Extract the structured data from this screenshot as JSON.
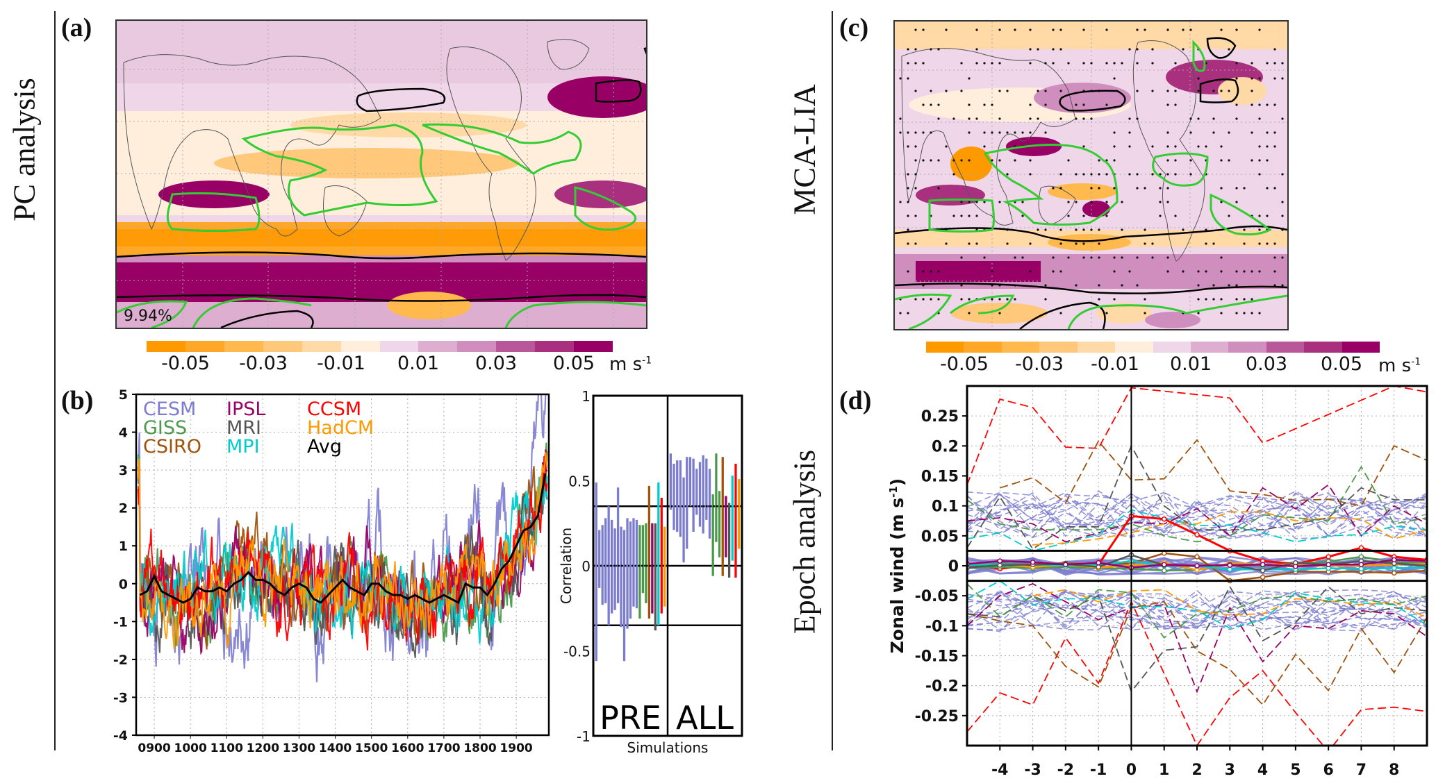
{
  "row_labels": {
    "left": "PC analysis",
    "right_top": "MCA-LIA",
    "right_bottom": "Epoch analysis"
  },
  "panel_labels": {
    "a": "(a)",
    "b": "(b)",
    "c": "(c)",
    "d": "(d)"
  },
  "colors": {
    "neg_strong": "#ff9900",
    "pos_strong": "#990066",
    "contour_green": "#33cc33",
    "contour_black": "#000000",
    "CESM": "#7b7bcf",
    "IPSL": "#990066",
    "CCSM": "#ff0000",
    "GISS": "#4a9a4a",
    "MRI": "#555555",
    "HadCM": "#ff9900",
    "CSIRO": "#a0520a",
    "MPI": "#00cccc",
    "Avg": "#000000"
  },
  "colorbar": {
    "colors": [
      "#ff9900",
      "#ffa726",
      "#ffb94d",
      "#ffc87a",
      "#ffd9a6",
      "#feeedb",
      "#efd6e8",
      "#deaed0",
      "#cf8ebe",
      "#b8589b",
      "#a8307f",
      "#990066"
    ],
    "tick_labels": [
      "-0.05",
      "-0.03",
      "-0.01",
      "0.01",
      "0.03",
      "0.05"
    ],
    "unit": "m s",
    "unit_exp": "-1"
  },
  "panel_a": {
    "variance_label": "9.94%"
  },
  "chart_data": [
    {
      "panel": "b",
      "type": "line",
      "title": "",
      "xlabel": "",
      "ylabel": "",
      "xlim": [
        850,
        1990
      ],
      "ylim": [
        -4,
        5
      ],
      "x_tick_labels": [
        "0900",
        "1000",
        "1100",
        "1200",
        "1300",
        "1400",
        "1500",
        "1600",
        "1700",
        "1800",
        "1900"
      ],
      "x_ticks": [
        900,
        1000,
        1100,
        1200,
        1300,
        1400,
        1500,
        1600,
        1700,
        1800,
        1900
      ],
      "y_tick_labels": [
        "-4",
        "-3",
        "-2",
        "-1",
        "0",
        "1",
        "2",
        "3",
        "4",
        "5"
      ],
      "y_ticks": [
        -4,
        -3,
        -2,
        -1,
        0,
        1,
        2,
        3,
        4,
        5
      ],
      "grid": true,
      "legend_position": "top-left",
      "legend": [
        {
          "name": "CESM"
        },
        {
          "name": "IPSL"
        },
        {
          "name": "CCSM"
        },
        {
          "name": "GISS"
        },
        {
          "name": "MRI"
        },
        {
          "name": "HadCM"
        },
        {
          "name": "CSIRO"
        },
        {
          "name": "MPI"
        },
        {
          "name": "Avg"
        }
      ],
      "avg_series": {
        "name": "Avg",
        "x": [
          860,
          880,
          900,
          920,
          940,
          960,
          980,
          1000,
          1020,
          1040,
          1060,
          1080,
          1100,
          1120,
          1140,
          1160,
          1180,
          1200,
          1220,
          1240,
          1260,
          1280,
          1300,
          1320,
          1340,
          1360,
          1380,
          1400,
          1420,
          1440,
          1460,
          1480,
          1500,
          1520,
          1540,
          1560,
          1580,
          1600,
          1620,
          1640,
          1660,
          1680,
          1700,
          1720,
          1740,
          1760,
          1780,
          1800,
          1820,
          1840,
          1860,
          1880,
          1900,
          1920,
          1940,
          1960,
          1980
        ],
        "y": [
          -0.3,
          -0.2,
          0.2,
          -0.2,
          -0.3,
          -0.4,
          -0.5,
          -0.4,
          -0.1,
          -0.2,
          -0.2,
          -0.1,
          -0.2,
          0.0,
          0.1,
          0.3,
          0.1,
          0.1,
          0.0,
          -0.2,
          -0.3,
          -0.1,
          0.0,
          -0.1,
          -0.4,
          -0.5,
          -0.3,
          -0.1,
          0.1,
          -0.1,
          -0.2,
          -0.3,
          0.0,
          0.0,
          -0.2,
          -0.3,
          -0.3,
          -0.4,
          -0.3,
          -0.4,
          -0.5,
          -0.4,
          -0.3,
          -0.4,
          -0.5,
          0.0,
          -0.1,
          -0.1,
          -0.3,
          0.0,
          0.4,
          0.6,
          1.0,
          1.4,
          1.5,
          1.8,
          2.9
        ]
      },
      "model_series_spread": {
        "description": "individual model time series fluctuate roughly between -3.2 and 2.6, with CESM rising to ~5 after 1900",
        "CESM_range": [
          -3.2,
          5.0
        ],
        "others_range": [
          -2.6,
          2.6
        ]
      }
    },
    {
      "panel": "b-correlation",
      "type": "bar",
      "title": "",
      "xlabel": "Simulations",
      "ylabel": "Correlation",
      "ylim": [
        -1,
        1
      ],
      "y_tick_labels": [
        "-1",
        "-0.5",
        "0",
        "0.5",
        "1"
      ],
      "y_ticks": [
        -1,
        -0.5,
        0,
        0.5,
        1
      ],
      "significance_lines": [
        0.35,
        -0.35
      ],
      "groups": [
        {
          "name": "PRE",
          "bars": [
            {
              "model": "CESM",
              "low": -0.56,
              "high": 0.49
            },
            {
              "model": "CESM",
              "low": -0.13,
              "high": 0.21
            },
            {
              "model": "CESM",
              "low": -0.23,
              "high": 0.24
            },
            {
              "model": "CESM",
              "low": -0.22,
              "high": 0.28
            },
            {
              "model": "CESM",
              "low": -0.35,
              "high": 0.35
            },
            {
              "model": "CESM",
              "low": -0.28,
              "high": 0.27
            },
            {
              "model": "CESM",
              "low": -0.26,
              "high": 0.22
            },
            {
              "model": "CESM",
              "low": -0.22,
              "high": 0.46
            },
            {
              "model": "CESM",
              "low": -0.36,
              "high": 0.23
            },
            {
              "model": "CESM",
              "low": -0.56,
              "high": 0.21
            },
            {
              "model": "CESM",
              "low": -0.37,
              "high": 0.28
            },
            {
              "model": "CESM",
              "low": -0.31,
              "high": 0.26
            },
            {
              "model": "CESM",
              "low": -0.24,
              "high": 0.28
            },
            {
              "model": "CESM",
              "low": -0.25,
              "high": 0.27
            },
            {
              "model": "GISS",
              "low": -0.31,
              "high": 0.24
            },
            {
              "model": "GISS",
              "low": -0.16,
              "high": 0.24
            },
            {
              "model": "GISS",
              "low": -0.22,
              "high": 0.25
            },
            {
              "model": "CSIRO",
              "low": -0.31,
              "high": 0.47
            },
            {
              "model": "IPSL",
              "low": -0.28,
              "high": 0.25
            },
            {
              "model": "MRI",
              "low": -0.38,
              "high": 0.25
            },
            {
              "model": "MPI",
              "low": -0.35,
              "high": 0.49
            },
            {
              "model": "CCSM",
              "low": -0.28,
              "high": 0.4
            },
            {
              "model": "HadCM",
              "low": -0.24,
              "high": 0.23
            }
          ]
        },
        {
          "name": "ALL",
          "bars": [
            {
              "model": "CESM",
              "low": 0.33,
              "high": 0.66
            },
            {
              "model": "CESM",
              "low": 0.21,
              "high": 0.6
            },
            {
              "model": "CESM",
              "low": 0.2,
              "high": 0.62
            },
            {
              "model": "CESM",
              "low": 0.17,
              "high": 0.62
            },
            {
              "model": "CESM",
              "low": 0.02,
              "high": 0.52
            },
            {
              "model": "CESM",
              "low": 0.1,
              "high": 0.64
            },
            {
              "model": "CESM",
              "low": 0.35,
              "high": 0.64
            },
            {
              "model": "CESM",
              "low": 0.2,
              "high": 0.63
            },
            {
              "model": "CESM",
              "low": 0.3,
              "high": 0.57
            },
            {
              "model": "CESM",
              "low": 0.23,
              "high": 0.61
            },
            {
              "model": "CESM",
              "low": 0.19,
              "high": 0.65
            },
            {
              "model": "CESM",
              "low": 0.27,
              "high": 0.63
            },
            {
              "model": "CESM",
              "low": 0.16,
              "high": 0.57
            },
            {
              "model": "GISS",
              "low": -0.06,
              "high": 0.42
            },
            {
              "model": "GISS",
              "low": 0.14,
              "high": 0.66
            },
            {
              "model": "GISS",
              "low": 0.05,
              "high": 0.44
            },
            {
              "model": "CSIRO",
              "low": -0.06,
              "high": 0.64
            },
            {
              "model": "IPSL",
              "low": 0.05,
              "high": 0.41
            },
            {
              "model": "MRI",
              "low": -0.07,
              "high": 0.37
            },
            {
              "model": "MPI",
              "low": 0.03,
              "high": 0.53
            },
            {
              "model": "CCSM",
              "low": -0.07,
              "high": 0.6
            },
            {
              "model": "HadCM",
              "low": 0.1,
              "high": 0.51
            }
          ]
        }
      ],
      "group_labels": [
        "PRE",
        "ALL"
      ]
    },
    {
      "panel": "d",
      "type": "line",
      "title": "",
      "xlabel": "",
      "ylabel": "Zonal wind (m s-1)",
      "ylabel_main": "Zonal wind (m s",
      "ylabel_exp": "-1",
      "ylabel_close": ")",
      "xlim": [
        -5,
        9
      ],
      "ylim": [
        -0.3,
        0.3
      ],
      "x_tick_labels": [
        "-4",
        "-3",
        "-2",
        "-1",
        "0",
        "1",
        "2",
        "3",
        "4",
        "5",
        "6",
        "7",
        "8"
      ],
      "x_ticks": [
        -4,
        -3,
        -2,
        -1,
        0,
        1,
        2,
        3,
        4,
        5,
        6,
        7,
        8
      ],
      "y_tick_labels": [
        "-0.25",
        "-0.2",
        "-0.15",
        "-0.1",
        "-0.05",
        "0",
        "0.05",
        "0.1",
        "0.15",
        "0.2",
        "0.25"
      ],
      "y_ticks": [
        -0.25,
        -0.2,
        -0.15,
        -0.1,
        -0.05,
        0,
        0.05,
        0.1,
        0.15,
        0.2,
        0.25
      ],
      "grid": true,
      "threshold_lines": [
        0.025,
        -0.025
      ],
      "event_line_x": 0,
      "x": [
        -5,
        -4,
        -3,
        -2,
        -1,
        0,
        1,
        2,
        3,
        4,
        5,
        6,
        7,
        8,
        9
      ],
      "solid_series": [
        {
          "model": "CCSM",
          "y": [
            0.003,
            -0.005,
            0.002,
            0.001,
            0.002,
            0.083,
            0.078,
            0.052,
            0.025,
            0.008,
            0.003,
            0.015,
            0.03,
            0.015,
            0.01
          ]
        },
        {
          "model": "CSIRO",
          "y": [
            0.0,
            0.004,
            0.002,
            0.004,
            0.003,
            0.004,
            0.021,
            0.015,
            -0.025,
            -0.019,
            -0.01,
            -0.01,
            -0.01,
            -0.012,
            -0.008
          ]
        },
        {
          "model": "GISS",
          "y": [
            -0.004,
            -0.002,
            -0.004,
            -0.002,
            -0.004,
            -0.005,
            -0.008,
            -0.007,
            0.003,
            0.0,
            0.004,
            0.007,
            0.015,
            0.006,
            0.004
          ]
        },
        {
          "model": "HadCM",
          "y": [
            0.002,
            0.002,
            -0.002,
            0.002,
            -0.003,
            0.001,
            0.005,
            -0.007,
            0.004,
            0.002,
            0.001,
            0.0,
            0.0,
            0.002,
            0.003
          ]
        },
        {
          "model": "MPI",
          "y": [
            0.001,
            0.003,
            0.002,
            0.001,
            0.001,
            0.008,
            0.0,
            0.0,
            -0.006,
            -0.006,
            -0.006,
            -0.004,
            -0.005,
            -0.004,
            -0.003
          ]
        },
        {
          "model": "MRI",
          "y": [
            -0.003,
            0.001,
            0.002,
            0.003,
            -0.002,
            0.018,
            0.001,
            0.0,
            0.002,
            -0.008,
            0.005,
            0.002,
            0.008,
            0.004,
            0.0
          ]
        },
        {
          "model": "IPSL",
          "y": [
            0.003,
            0.008,
            0.006,
            0.002,
            0.005,
            -0.003,
            0.002,
            0.0,
            0.001,
            0.002,
            -0.001,
            0.002,
            0.002,
            0.01,
            0.008
          ]
        }
      ],
      "dashed_upper_series": [
        {
          "model": "CCSM",
          "y": [
            0.135,
            0.278,
            0.264,
            0.198,
            0.196,
            0.297,
            null,
            null,
            0.28,
            0.205,
            null,
            null,
            null,
            0.3,
            0.29
          ]
        },
        {
          "model": "CSIRO",
          "y": [
            null,
            0.13,
            0.147,
            0.105,
            0.208,
            0.143,
            0.145,
            0.21,
            0.125,
            0.119,
            0.109,
            0.111,
            0.1,
            0.2,
            0.176
          ]
        },
        {
          "model": "MRI",
          "y": [
            0.03,
            0.115,
            0.028,
            0.065,
            0.065,
            0.2,
            0.1,
            0.06,
            0.06,
            0.06,
            0.07,
            0.08,
            0.13,
            0.11,
            0.11
          ]
        },
        {
          "model": "IPSL",
          "y": [
            0.075,
            0.08,
            0.07,
            0.04,
            0.055,
            0.072,
            0.07,
            0.095,
            0.05,
            0.13,
            0.095,
            0.135,
            0.05,
            0.1,
            0.07
          ]
        },
        {
          "model": "MPI",
          "y": [
            0.045,
            0.055,
            0.025,
            0.038,
            0.052,
            0.093,
            0.08,
            0.067,
            0.068,
            0.055,
            0.04,
            0.05,
            0.052,
            0.066,
            0.06
          ]
        },
        {
          "model": "HadCM",
          "y": [
            null,
            null,
            0.035,
            0.038,
            0.045,
            0.055,
            0.07,
            0.07,
            0.09,
            0.09,
            0.075,
            0.08,
            0.078,
            0.045,
            0.06
          ]
        },
        {
          "model": "GISS",
          "y": [
            0.11,
            0.07,
            0.06,
            0.06,
            0.06,
            0.07,
            0.05,
            0.04,
            0.05,
            0.085,
            0.08,
            0.075,
            0.165,
            0.07,
            0.08
          ]
        }
      ],
      "dashed_lower_series": [
        {
          "model": "CCSM",
          "y": [
            -0.277,
            -0.212,
            -0.232,
            -0.12,
            -0.196,
            -0.06,
            -0.18,
            -0.3,
            -0.22,
            -0.175,
            -0.245,
            -0.31,
            -0.24,
            -0.236,
            -0.243
          ]
        },
        {
          "model": "CSIRO",
          "y": [
            -0.08,
            -0.092,
            -0.1,
            -0.168,
            -0.202,
            -0.07,
            -0.06,
            -0.142,
            -0.173,
            -0.232,
            -0.148,
            -0.208,
            -0.105,
            -0.178,
            -0.086
          ]
        },
        {
          "model": "MRI",
          "y": [
            -0.08,
            -0.085,
            -0.05,
            -0.075,
            -0.05,
            -0.21,
            -0.141,
            -0.135,
            -0.035,
            -0.125,
            -0.095,
            -0.035,
            -0.08,
            -0.07,
            -0.075
          ]
        },
        {
          "model": "IPSL",
          "y": [
            -0.1,
            -0.05,
            -0.03,
            -0.06,
            -0.09,
            -0.07,
            -0.065,
            -0.21,
            -0.07,
            -0.16,
            -0.1,
            -0.105,
            -0.075,
            -0.08,
            -0.118
          ]
        },
        {
          "model": "MPI",
          "y": [
            -0.055,
            -0.025,
            -0.065,
            -0.055,
            -0.055,
            -0.068,
            -0.068,
            -0.075,
            -0.104,
            -0.09,
            -0.045,
            -0.055,
            -0.062,
            -0.065,
            -0.099
          ]
        },
        {
          "model": "HadCM",
          "y": [
            null,
            null,
            -0.05,
            -0.04,
            -0.06,
            -0.042,
            -0.04,
            -0.075,
            -0.082,
            -0.08,
            -0.055,
            -0.058,
            -0.065,
            -0.06,
            -0.087
          ]
        },
        {
          "model": "GISS",
          "y": [
            -0.03,
            -0.085,
            -0.05,
            -0.085,
            -0.04,
            -0.045,
            -0.12,
            -0.08,
            -0.075,
            -0.055,
            -0.05,
            -0.06,
            -0.055,
            -0.065,
            -0.05
          ]
        }
      ]
    }
  ]
}
